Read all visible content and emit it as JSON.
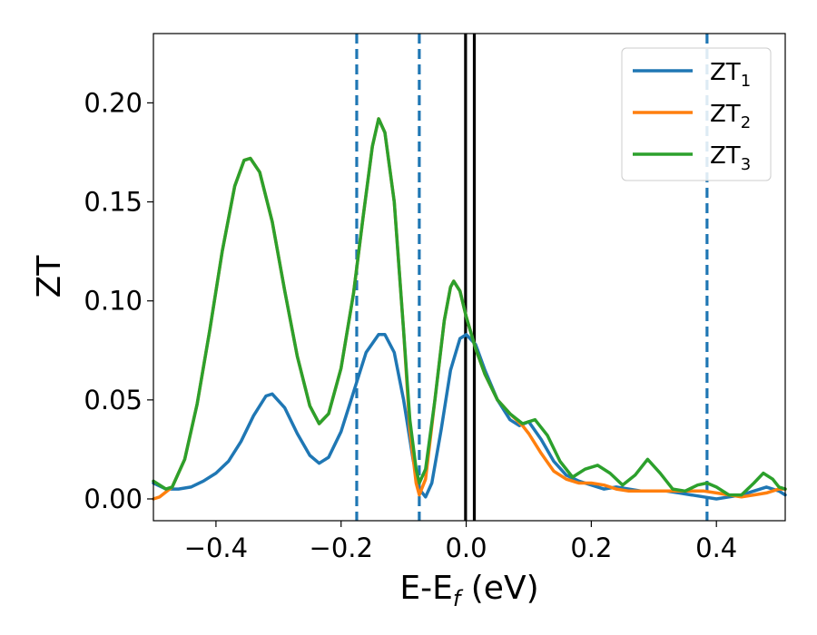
{
  "chart_data": {
    "type": "line",
    "title": "",
    "xlabel": {
      "main": "E-E",
      "sub": "f",
      "suffix": " (eV)"
    },
    "ylabel": "ZT",
    "xlim": [
      -0.5,
      0.51
    ],
    "ylim": [
      -0.011,
      0.235
    ],
    "x_ticks": [
      -0.4,
      -0.2,
      0.0,
      0.2,
      0.4
    ],
    "x_tick_labels": [
      "−0.4",
      "−0.2",
      "0.0",
      "0.2",
      "0.4"
    ],
    "y_ticks": [
      0.0,
      0.05,
      0.1,
      0.15,
      0.2
    ],
    "y_tick_labels": [
      "0.00",
      "0.05",
      "0.10",
      "0.15",
      "0.20"
    ],
    "grid": false,
    "legend": "top-right",
    "vertical_lines": [
      {
        "x": -0.175,
        "style": "dashed",
        "color": "#1f77b4"
      },
      {
        "x": -0.075,
        "style": "dashed",
        "color": "#1f77b4"
      },
      {
        "x": 0.385,
        "style": "dashed",
        "color": "#1f77b4"
      },
      {
        "x": -0.001,
        "style": "solid",
        "color": "#000000"
      },
      {
        "x": 0.013,
        "style": "solid",
        "color": "#000000"
      }
    ],
    "series": [
      {
        "name": "ZT",
        "sub": "1",
        "color": "#1f77b4",
        "points": [
          [
            -0.5,
            0.008
          ],
          [
            -0.48,
            0.005
          ],
          [
            -0.46,
            0.005
          ],
          [
            -0.44,
            0.006
          ],
          [
            -0.42,
            0.009
          ],
          [
            -0.4,
            0.013
          ],
          [
            -0.38,
            0.019
          ],
          [
            -0.36,
            0.029
          ],
          [
            -0.34,
            0.042
          ],
          [
            -0.32,
            0.052
          ],
          [
            -0.31,
            0.053
          ],
          [
            -0.29,
            0.046
          ],
          [
            -0.27,
            0.033
          ],
          [
            -0.25,
            0.022
          ],
          [
            -0.235,
            0.018
          ],
          [
            -0.22,
            0.021
          ],
          [
            -0.2,
            0.034
          ],
          [
            -0.18,
            0.054
          ],
          [
            -0.16,
            0.074
          ],
          [
            -0.14,
            0.083
          ],
          [
            -0.13,
            0.083
          ],
          [
            -0.115,
            0.074
          ],
          [
            -0.1,
            0.05
          ],
          [
            -0.085,
            0.02
          ],
          [
            -0.075,
            0.005
          ],
          [
            -0.065,
            0.001
          ],
          [
            -0.055,
            0.008
          ],
          [
            -0.04,
            0.035
          ],
          [
            -0.025,
            0.065
          ],
          [
            -0.01,
            0.081
          ],
          [
            0.0,
            0.083
          ],
          [
            0.015,
            0.078
          ],
          [
            0.03,
            0.065
          ],
          [
            0.05,
            0.05
          ],
          [
            0.07,
            0.04
          ],
          [
            0.085,
            0.037
          ],
          [
            0.1,
            0.039
          ],
          [
            0.12,
            0.03
          ],
          [
            0.14,
            0.019
          ],
          [
            0.16,
            0.012
          ],
          [
            0.18,
            0.009
          ],
          [
            0.2,
            0.007
          ],
          [
            0.22,
            0.005
          ],
          [
            0.24,
            0.006
          ],
          [
            0.26,
            0.005
          ],
          [
            0.28,
            0.004
          ],
          [
            0.3,
            0.004
          ],
          [
            0.32,
            0.004
          ],
          [
            0.34,
            0.003
          ],
          [
            0.36,
            0.002
          ],
          [
            0.38,
            0.001
          ],
          [
            0.4,
            0.0
          ],
          [
            0.42,
            0.001
          ],
          [
            0.44,
            0.002
          ],
          [
            0.46,
            0.004
          ],
          [
            0.48,
            0.006
          ],
          [
            0.5,
            0.004
          ],
          [
            0.51,
            0.002
          ]
        ]
      },
      {
        "name": "ZT",
        "sub": "2",
        "color": "#ff7f0e",
        "points": [
          [
            -0.5,
            0.0
          ],
          [
            -0.49,
            0.001
          ],
          [
            -0.47,
            0.006
          ],
          [
            -0.45,
            0.02
          ],
          [
            -0.43,
            0.048
          ],
          [
            -0.41,
            0.085
          ],
          [
            -0.39,
            0.125
          ],
          [
            -0.37,
            0.158
          ],
          [
            -0.355,
            0.171
          ],
          [
            -0.345,
            0.172
          ],
          [
            -0.33,
            0.165
          ],
          [
            -0.31,
            0.14
          ],
          [
            -0.29,
            0.105
          ],
          [
            -0.27,
            0.072
          ],
          [
            -0.25,
            0.047
          ],
          [
            -0.235,
            0.038
          ],
          [
            -0.22,
            0.043
          ],
          [
            -0.2,
            0.066
          ],
          [
            -0.18,
            0.104
          ],
          [
            -0.165,
            0.142
          ],
          [
            -0.15,
            0.178
          ],
          [
            -0.14,
            0.192
          ],
          [
            -0.13,
            0.185
          ],
          [
            -0.115,
            0.15
          ],
          [
            -0.1,
            0.085
          ],
          [
            -0.09,
            0.035
          ],
          [
            -0.08,
            0.008
          ],
          [
            -0.075,
            0.002
          ],
          [
            -0.065,
            0.01
          ],
          [
            -0.05,
            0.05
          ],
          [
            -0.035,
            0.09
          ],
          [
            -0.025,
            0.107
          ],
          [
            -0.02,
            0.11
          ],
          [
            -0.01,
            0.105
          ],
          [
            0.0,
            0.092
          ],
          [
            0.015,
            0.076
          ],
          [
            0.03,
            0.063
          ],
          [
            0.05,
            0.05
          ],
          [
            0.07,
            0.043
          ],
          [
            0.09,
            0.037
          ],
          [
            0.1,
            0.033
          ],
          [
            0.12,
            0.023
          ],
          [
            0.14,
            0.014
          ],
          [
            0.16,
            0.01
          ],
          [
            0.18,
            0.008
          ],
          [
            0.2,
            0.008
          ],
          [
            0.22,
            0.007
          ],
          [
            0.24,
            0.005
          ],
          [
            0.26,
            0.004
          ],
          [
            0.28,
            0.004
          ],
          [
            0.3,
            0.004
          ],
          [
            0.32,
            0.004
          ],
          [
            0.34,
            0.004
          ],
          [
            0.36,
            0.004
          ],
          [
            0.38,
            0.004
          ],
          [
            0.4,
            0.003
          ],
          [
            0.42,
            0.002
          ],
          [
            0.44,
            0.001
          ],
          [
            0.46,
            0.002
          ],
          [
            0.48,
            0.003
          ],
          [
            0.5,
            0.005
          ],
          [
            0.51,
            0.005
          ]
        ]
      },
      {
        "name": "ZT",
        "sub": "3",
        "color": "#2ca02c",
        "points": [
          [
            -0.5,
            0.009
          ],
          [
            -0.48,
            0.005
          ],
          [
            -0.47,
            0.006
          ],
          [
            -0.45,
            0.02
          ],
          [
            -0.43,
            0.048
          ],
          [
            -0.41,
            0.085
          ],
          [
            -0.39,
            0.125
          ],
          [
            -0.37,
            0.158
          ],
          [
            -0.355,
            0.171
          ],
          [
            -0.345,
            0.172
          ],
          [
            -0.33,
            0.165
          ],
          [
            -0.31,
            0.14
          ],
          [
            -0.29,
            0.105
          ],
          [
            -0.27,
            0.072
          ],
          [
            -0.25,
            0.047
          ],
          [
            -0.235,
            0.038
          ],
          [
            -0.22,
            0.043
          ],
          [
            -0.2,
            0.066
          ],
          [
            -0.18,
            0.104
          ],
          [
            -0.165,
            0.142
          ],
          [
            -0.15,
            0.178
          ],
          [
            -0.14,
            0.192
          ],
          [
            -0.13,
            0.185
          ],
          [
            -0.115,
            0.15
          ],
          [
            -0.1,
            0.085
          ],
          [
            -0.09,
            0.04
          ],
          [
            -0.08,
            0.015
          ],
          [
            -0.075,
            0.008
          ],
          [
            -0.065,
            0.015
          ],
          [
            -0.05,
            0.05
          ],
          [
            -0.035,
            0.09
          ],
          [
            -0.025,
            0.107
          ],
          [
            -0.02,
            0.11
          ],
          [
            -0.01,
            0.105
          ],
          [
            0.0,
            0.092
          ],
          [
            0.015,
            0.076
          ],
          [
            0.03,
            0.063
          ],
          [
            0.05,
            0.05
          ],
          [
            0.07,
            0.043
          ],
          [
            0.09,
            0.038
          ],
          [
            0.11,
            0.04
          ],
          [
            0.13,
            0.032
          ],
          [
            0.15,
            0.019
          ],
          [
            0.17,
            0.011
          ],
          [
            0.19,
            0.015
          ],
          [
            0.21,
            0.017
          ],
          [
            0.23,
            0.013
          ],
          [
            0.25,
            0.007
          ],
          [
            0.27,
            0.012
          ],
          [
            0.29,
            0.02
          ],
          [
            0.31,
            0.013
          ],
          [
            0.33,
            0.005
          ],
          [
            0.35,
            0.004
          ],
          [
            0.37,
            0.007
          ],
          [
            0.385,
            0.008
          ],
          [
            0.4,
            0.006
          ],
          [
            0.42,
            0.002
          ],
          [
            0.44,
            0.002
          ],
          [
            0.46,
            0.008
          ],
          [
            0.475,
            0.013
          ],
          [
            0.49,
            0.01
          ],
          [
            0.5,
            0.006
          ],
          [
            0.51,
            0.005
          ]
        ]
      }
    ]
  }
}
